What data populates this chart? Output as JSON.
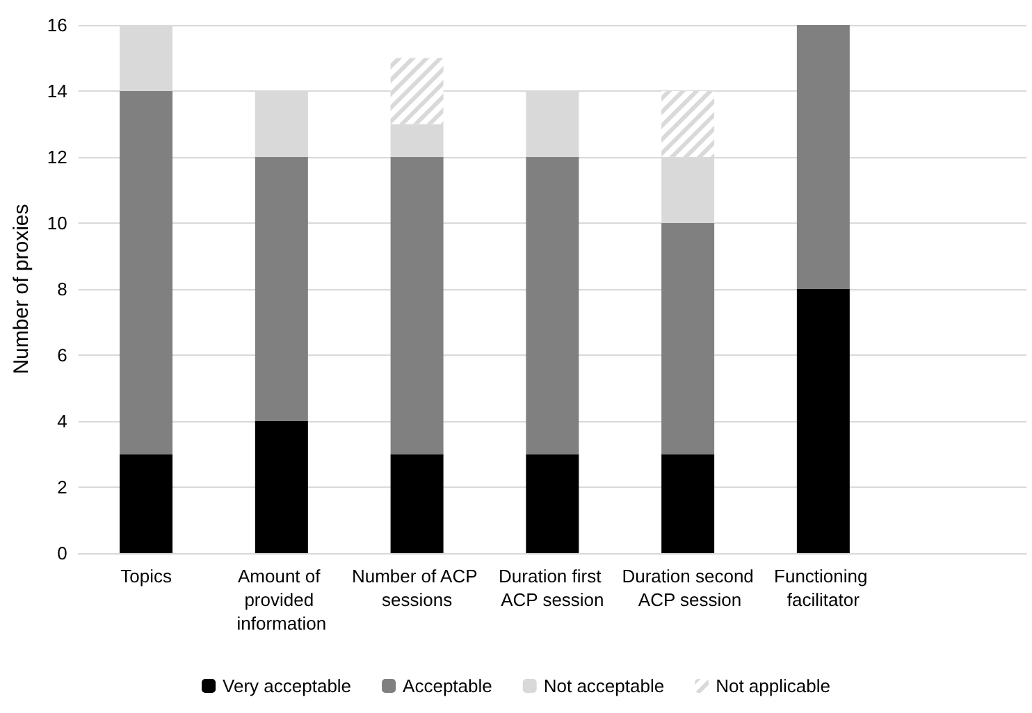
{
  "chart_data": {
    "type": "bar",
    "stacked": true,
    "ylabel": "Number of proxies",
    "categories": [
      "Topics",
      "Amount of provided information",
      "Number of ACP sessions",
      "Duration first ACP session",
      "Duration second ACP session",
      "Functioning facilitator",
      null
    ],
    "series": [
      {
        "name": "Very acceptable",
        "color": "#000000",
        "values": [
          3,
          4,
          3,
          3,
          3,
          8,
          null
        ]
      },
      {
        "name": "Acceptable",
        "color": "#808080",
        "values": [
          11,
          8,
          9,
          9,
          7,
          8,
          null
        ]
      },
      {
        "name": "Not acceptable",
        "color": "#d9d9d9",
        "values": [
          2,
          2,
          1,
          2,
          2,
          0,
          null
        ]
      },
      {
        "name": "Not applicable",
        "color": "#d9d9d9",
        "values": [
          0,
          0,
          2,
          0,
          2,
          0,
          null
        ]
      }
    ],
    "ylim": [
      0,
      16
    ],
    "yticks": [
      0,
      2,
      4,
      6,
      8,
      10,
      12,
      14,
      16
    ],
    "grid": "y",
    "legend": "bottom"
  }
}
